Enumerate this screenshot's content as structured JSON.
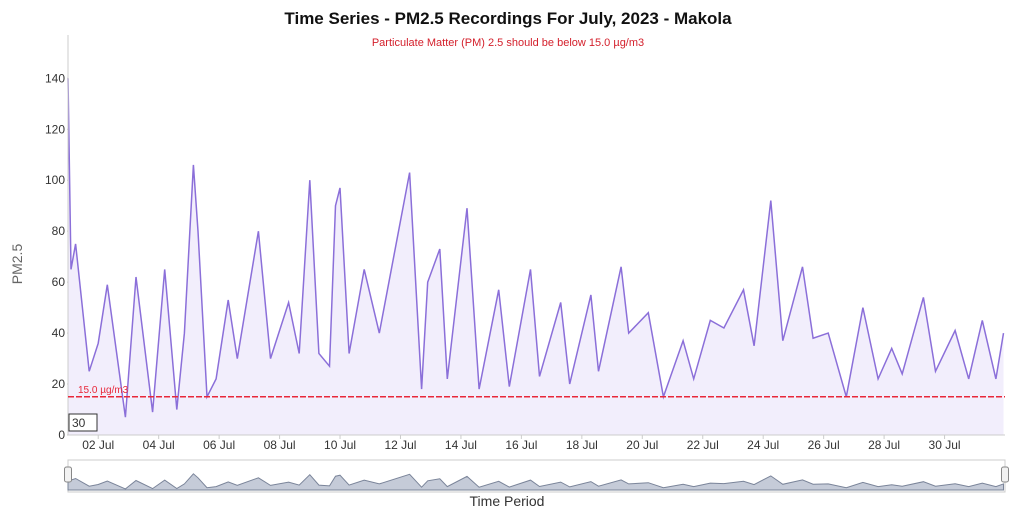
{
  "chart_data": {
    "type": "area-line",
    "title": "Time Series - PM2.5 Recordings For July, 2023 - Makola",
    "subtitle": "Particulate Matter (PM) 2.5 should be below 15.0 µg/m3",
    "y_label": "PM2.5",
    "x_label": "Time Period",
    "range_input": "30",
    "color": "#8b6fd9",
    "fill": "#f2eefc",
    "x": [
      1.0,
      1.1,
      1.25,
      1.7,
      2.0,
      2.3,
      2.9,
      3.25,
      3.8,
      4.2,
      4.6,
      4.85,
      5.15,
      5.3,
      5.6,
      5.9,
      6.3,
      6.6,
      7.3,
      7.7,
      8.3,
      8.65,
      9.0,
      9.3,
      9.65,
      9.85,
      10.0,
      10.3,
      10.8,
      11.3,
      12.3,
      12.7,
      12.9,
      13.3,
      13.55,
      14.2,
      14.6,
      15.25,
      15.6,
      16.3,
      16.6,
      17.3,
      17.6,
      18.3,
      18.55,
      19.3,
      19.55,
      20.2,
      20.7,
      21.35,
      21.7,
      22.25,
      22.7,
      23.35,
      23.7,
      24.25,
      24.65,
      25.3,
      25.65,
      26.15,
      26.75,
      27.3,
      27.8,
      28.25,
      28.6,
      29.3,
      29.7,
      30.35,
      30.8,
      31.25,
      31.7,
      31.95
    ],
    "values": [
      140,
      65,
      75,
      25,
      36,
      59,
      7,
      62,
      9,
      65,
      10,
      40,
      106,
      80,
      15,
      22,
      53,
      30,
      80,
      30,
      52,
      32,
      100,
      32,
      27,
      90,
      97,
      32,
      65,
      40,
      103,
      18,
      60,
      73,
      22,
      89,
      18,
      57,
      19,
      65,
      23,
      52,
      20,
      55,
      25,
      66,
      40,
      48,
      15,
      37,
      22,
      45,
      42,
      57,
      35,
      92,
      37,
      66,
      38,
      40,
      15,
      50,
      22,
      34,
      24,
      54,
      25,
      41,
      22,
      45,
      22,
      40
    ],
    "xlim": [
      1,
      32
    ],
    "ylim": [
      0,
      157
    ],
    "xticks": [
      {
        "value": 2,
        "label": "02 Jul"
      },
      {
        "value": 4,
        "label": "04 Jul"
      },
      {
        "value": 6,
        "label": "06 Jul"
      },
      {
        "value": 8,
        "label": "08 Jul"
      },
      {
        "value": 10,
        "label": "10 Jul"
      },
      {
        "value": 12,
        "label": "12 Jul"
      },
      {
        "value": 14,
        "label": "14 Jul"
      },
      {
        "value": 16,
        "label": "16 Jul"
      },
      {
        "value": 18,
        "label": "18 Jul"
      },
      {
        "value": 20,
        "label": "20 Jul"
      },
      {
        "value": 22,
        "label": "22 Jul"
      },
      {
        "value": 24,
        "label": "24 Jul"
      },
      {
        "value": 26,
        "label": "26 Jul"
      },
      {
        "value": 28,
        "label": "28 Jul"
      },
      {
        "value": 30,
        "label": "30 Jul"
      }
    ],
    "yticks": [
      0,
      20,
      40,
      60,
      80,
      100,
      120,
      140
    ],
    "threshold": {
      "value": 15,
      "label": "15.0 µg/m3",
      "color": "#e8283a"
    }
  }
}
